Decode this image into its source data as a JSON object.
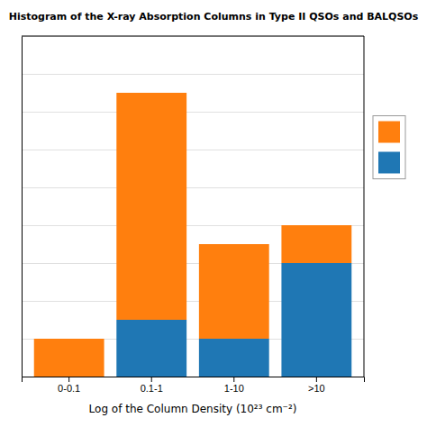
{
  "chart_data": {
    "type": "bar",
    "stacked": true,
    "title": "Histogram of the X-ray Absorption Columns in Type II QSOs and BALQSOs",
    "xlabel": "Log of the Column Density (10²³ cm⁻²)",
    "categories": [
      "0-0.1",
      "0.1-1",
      "1-10",
      ">10"
    ],
    "series": [
      {
        "values": [
          0,
          3,
          2,
          6
        ]
      },
      {
        "values": [
          2,
          12,
          5,
          2
        ]
      }
    ],
    "ylim": [
      0,
      18
    ],
    "yticks": [
      2,
      4,
      6,
      8,
      10,
      12,
      14,
      16,
      18
    ],
    "grid": true,
    "tick_labels": "x",
    "legend": "right"
  }
}
